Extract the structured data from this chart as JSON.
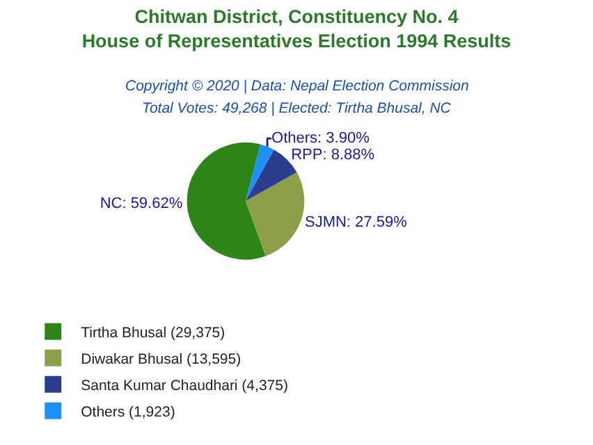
{
  "chart_data": {
    "type": "pie",
    "title": "Chitwan District, Constituency No. 4\nHouse of Representatives Election 1994 Results",
    "subtitle": "Copyright © 2020 | Data: Nepal Election Commission",
    "annotations": [
      "Total Votes: 49,268 | Elected: Tirtha Bhusal, NC"
    ],
    "categories": [
      "Tirtha Bhusal (29,375)",
      "Diwakar Bhusal (13,595)",
      "Santa Kumar Chaudhari (4,375)",
      "Others (1,923)"
    ],
    "values": [
      59.62,
      27.59,
      8.88,
      3.9
    ],
    "value_labels": [
      "NC: 59.62%",
      "SJMN: 27.59%",
      "RPP: 8.88%",
      "Others: 3.90%"
    ],
    "colors": [
      "#2e8517",
      "#8ca04a",
      "#2b3d8c",
      "#1e8fff"
    ],
    "legend": "bottom"
  }
}
